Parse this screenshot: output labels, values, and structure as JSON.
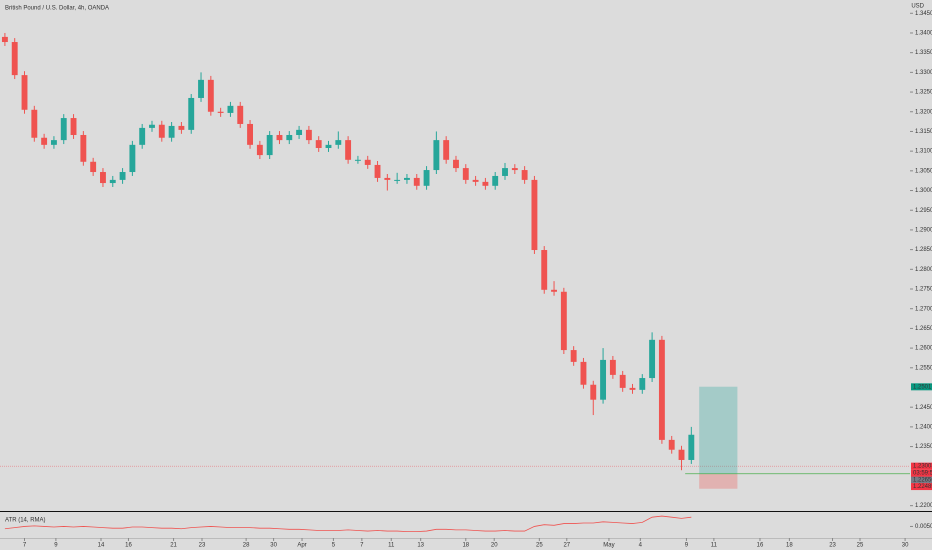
{
  "chart_data": {
    "type": "candlestick",
    "title": "British Pound / U.S. Dollar, 4h, OANDA",
    "currency": "USD",
    "up_color": "#26a69a",
    "down_color": "#ef5350",
    "open": [
      1.339,
      1.3377,
      1.3293,
      1.3205,
      1.3134,
      1.3116,
      1.3128,
      1.3184,
      1.3141,
      1.3073,
      1.3047,
      1.3019,
      1.3027,
      1.3047,
      1.3116,
      1.3159,
      1.3167,
      1.3134,
      1.3164,
      1.3154,
      1.3235,
      1.3281,
      1.32,
      1.3197,
      1.3215,
      1.3169,
      1.3116,
      1.309,
      1.3141,
      1.3128,
      1.3141,
      1.3154,
      1.3128,
      1.3108,
      1.3116,
      1.3128,
      1.3078,
      1.3078,
      1.3065,
      1.3032,
      1.3027,
      1.3027,
      1.3032,
      1.3012,
      1.3052,
      1.3128,
      1.3078,
      1.3057,
      1.3027,
      1.3022,
      1.3012,
      1.3037,
      1.3057,
      1.3052,
      1.3027,
      1.2849,
      1.2748,
      1.2743,
      1.2595,
      1.2565,
      1.2507,
      1.2469,
      1.257,
      1.2532,
      1.2499,
      1.2494,
      1.2524,
      1.2621,
      1.2367,
      1.2342,
      1.2316
    ],
    "high": [
      1.34,
      1.3387,
      1.3303,
      1.3215,
      1.3144,
      1.3138,
      1.3194,
      1.3194,
      1.3151,
      1.3083,
      1.3057,
      1.3037,
      1.3057,
      1.3126,
      1.3169,
      1.3177,
      1.3177,
      1.3174,
      1.3174,
      1.3245,
      1.33,
      1.3291,
      1.321,
      1.3225,
      1.3225,
      1.3179,
      1.3126,
      1.3151,
      1.3151,
      1.3151,
      1.3164,
      1.3164,
      1.3138,
      1.3126,
      1.315,
      1.3138,
      1.3088,
      1.3088,
      1.3075,
      1.3042,
      1.3045,
      1.3042,
      1.3042,
      1.3062,
      1.315,
      1.3138,
      1.3088,
      1.3067,
      1.3037,
      1.3032,
      1.3047,
      1.307,
      1.3067,
      1.3062,
      1.3037,
      1.2859,
      1.277,
      1.2753,
      1.2605,
      1.2575,
      1.2517,
      1.26,
      1.258,
      1.2542,
      1.2509,
      1.2534,
      1.264,
      1.2631,
      1.2377,
      1.2352,
      1.24
    ],
    "low": [
      1.3367,
      1.3283,
      1.3195,
      1.3124,
      1.3106,
      1.3106,
      1.3118,
      1.3131,
      1.3063,
      1.3037,
      1.3009,
      1.3009,
      1.3017,
      1.3037,
      1.3106,
      1.3149,
      1.3124,
      1.3124,
      1.3144,
      1.3144,
      1.3225,
      1.319,
      1.3187,
      1.3187,
      1.3159,
      1.3106,
      1.308,
      1.308,
      1.3118,
      1.3118,
      1.3131,
      1.3118,
      1.3098,
      1.3098,
      1.3106,
      1.3068,
      1.3068,
      1.3055,
      1.3022,
      1.3,
      1.3017,
      1.3017,
      1.3002,
      1.3002,
      1.3042,
      1.3068,
      1.3047,
      1.3017,
      1.3012,
      1.3002,
      1.3002,
      1.3027,
      1.3042,
      1.3017,
      1.2839,
      1.2738,
      1.2733,
      1.2585,
      1.2555,
      1.2497,
      1.243,
      1.2459,
      1.2522,
      1.2489,
      1.2484,
      1.2484,
      1.2514,
      1.2357,
      1.2332,
      1.229,
      1.2306
    ],
    "close": [
      1.3377,
      1.3293,
      1.3205,
      1.3134,
      1.3116,
      1.3128,
      1.3184,
      1.3141,
      1.3073,
      1.3047,
      1.3019,
      1.3027,
      1.3047,
      1.3116,
      1.3159,
      1.3167,
      1.3134,
      1.3164,
      1.3154,
      1.3235,
      1.3281,
      1.32,
      1.3197,
      1.3215,
      1.3169,
      1.3116,
      1.309,
      1.3141,
      1.3128,
      1.3141,
      1.3154,
      1.3128,
      1.3108,
      1.3116,
      1.3128,
      1.3078,
      1.3078,
      1.3065,
      1.3032,
      1.3027,
      1.3027,
      1.3032,
      1.3012,
      1.3052,
      1.3128,
      1.3078,
      1.3057,
      1.3027,
      1.3022,
      1.3012,
      1.3037,
      1.3057,
      1.3052,
      1.3027,
      1.2849,
      1.2748,
      1.2743,
      1.2595,
      1.2565,
      1.2507,
      1.2469,
      1.257,
      1.2532,
      1.2499,
      1.2494,
      1.2524,
      1.2621,
      1.2367,
      1.2342,
      1.2316,
      1.238
    ],
    "xlim": [
      -0.5,
      92.3
    ],
    "xticks": [
      {
        "value": 2.0,
        "label": "7"
      },
      {
        "value": 5.2,
        "label": "9"
      },
      {
        "value": 9.8,
        "label": "14"
      },
      {
        "value": 12.6,
        "label": "16"
      },
      {
        "value": 17.2,
        "label": "21"
      },
      {
        "value": 20.1,
        "label": "23"
      },
      {
        "value": 24.6,
        "label": "28"
      },
      {
        "value": 27.4,
        "label": "30"
      },
      {
        "value": 30.3,
        "label": "Apr"
      },
      {
        "value": 33.5,
        "label": "5"
      },
      {
        "value": 36.4,
        "label": "7"
      },
      {
        "value": 39.4,
        "label": "11"
      },
      {
        "value": 42.4,
        "label": "13"
      },
      {
        "value": 47.0,
        "label": "18"
      },
      {
        "value": 49.9,
        "label": "20"
      },
      {
        "value": 54.5,
        "label": "25"
      },
      {
        "value": 57.3,
        "label": "27"
      },
      {
        "value": 61.6,
        "label": "May"
      },
      {
        "value": 64.8,
        "label": "4"
      },
      {
        "value": 69.5,
        "label": "9"
      },
      {
        "value": 72.3,
        "label": "11"
      },
      {
        "value": 77.0,
        "label": "16"
      },
      {
        "value": 80.0,
        "label": "18"
      },
      {
        "value": 84.4,
        "label": "23"
      },
      {
        "value": 87.2,
        "label": "25"
      },
      {
        "value": 91.8,
        "label": "30"
      }
    ],
    "ylim": [
      1.2189,
      1.3471
    ],
    "yticks": [
      {
        "value": 1.345,
        "label": "1.34500"
      },
      {
        "value": 1.34,
        "label": "1.34000"
      },
      {
        "value": 1.335,
        "label": "1.33500"
      },
      {
        "value": 1.33,
        "label": "1.33000"
      },
      {
        "value": 1.325,
        "label": "1.32500"
      },
      {
        "value": 1.32,
        "label": "1.32000"
      },
      {
        "value": 1.315,
        "label": "1.31500"
      },
      {
        "value": 1.31,
        "label": "1.31000"
      },
      {
        "value": 1.305,
        "label": "1.30500"
      },
      {
        "value": 1.3,
        "label": "1.30000"
      },
      {
        "value": 1.295,
        "label": "1.29500"
      },
      {
        "value": 1.29,
        "label": "1.29000"
      },
      {
        "value": 1.285,
        "label": "1.28500"
      },
      {
        "value": 1.28,
        "label": "1.28000"
      },
      {
        "value": 1.275,
        "label": "1.27500"
      },
      {
        "value": 1.27,
        "label": "1.27000"
      },
      {
        "value": 1.265,
        "label": "1.26500"
      },
      {
        "value": 1.26,
        "label": "1.26000"
      },
      {
        "value": 1.255,
        "label": "1.25500"
      },
      {
        "value": 1.245,
        "label": "1.24500"
      },
      {
        "value": 1.24,
        "label": "1.24000"
      },
      {
        "value": 1.235,
        "label": "1.23500"
      },
      {
        "value": 1.22,
        "label": "1.22000"
      }
    ],
    "price_labels": {
      "values": [
        1.25017,
        1.23003,
        1.22656,
        1.22485
      ],
      "colors": [
        "#089981",
        "#f23645",
        "#787b86",
        "#f23645"
      ]
    },
    "countdown": "03:59:59",
    "position": {
      "target": 1.2502,
      "entry": 1.2281,
      "stop": 1.2243,
      "x_start": 70.8,
      "x_end": 74.7
    },
    "atr": {
      "name": "ATR (14, RMA)",
      "color": "#ef5350",
      "values": [
        0.0046,
        0.0048,
        0.005,
        0.0051,
        0.005,
        0.0049,
        0.005,
        0.0049,
        0.005,
        0.0049,
        0.0048,
        0.0047,
        0.0047,
        0.0049,
        0.0049,
        0.0048,
        0.0047,
        0.0047,
        0.0046,
        0.0048,
        0.0049,
        0.005,
        0.0049,
        0.0048,
        0.0048,
        0.0048,
        0.0047,
        0.0047,
        0.0046,
        0.0045,
        0.0045,
        0.0044,
        0.0043,
        0.0043,
        0.0043,
        0.0044,
        0.0043,
        0.0042,
        0.0043,
        0.0042,
        0.0042,
        0.0041,
        0.0041,
        0.0042,
        0.0045,
        0.0045,
        0.0044,
        0.0044,
        0.0043,
        0.0042,
        0.0042,
        0.0043,
        0.0042,
        0.0042,
        0.005,
        0.0053,
        0.0052,
        0.0055,
        0.0055,
        0.0056,
        0.0056,
        0.0058,
        0.0057,
        0.0056,
        0.0055,
        0.0057,
        0.0066,
        0.0068,
        0.0066,
        0.0064,
        0.0066
      ],
      "ylim": [
        0.003,
        0.0075
      ],
      "yticks": [
        {
          "value": 0.005,
          "label": "0.00500"
        }
      ]
    }
  }
}
